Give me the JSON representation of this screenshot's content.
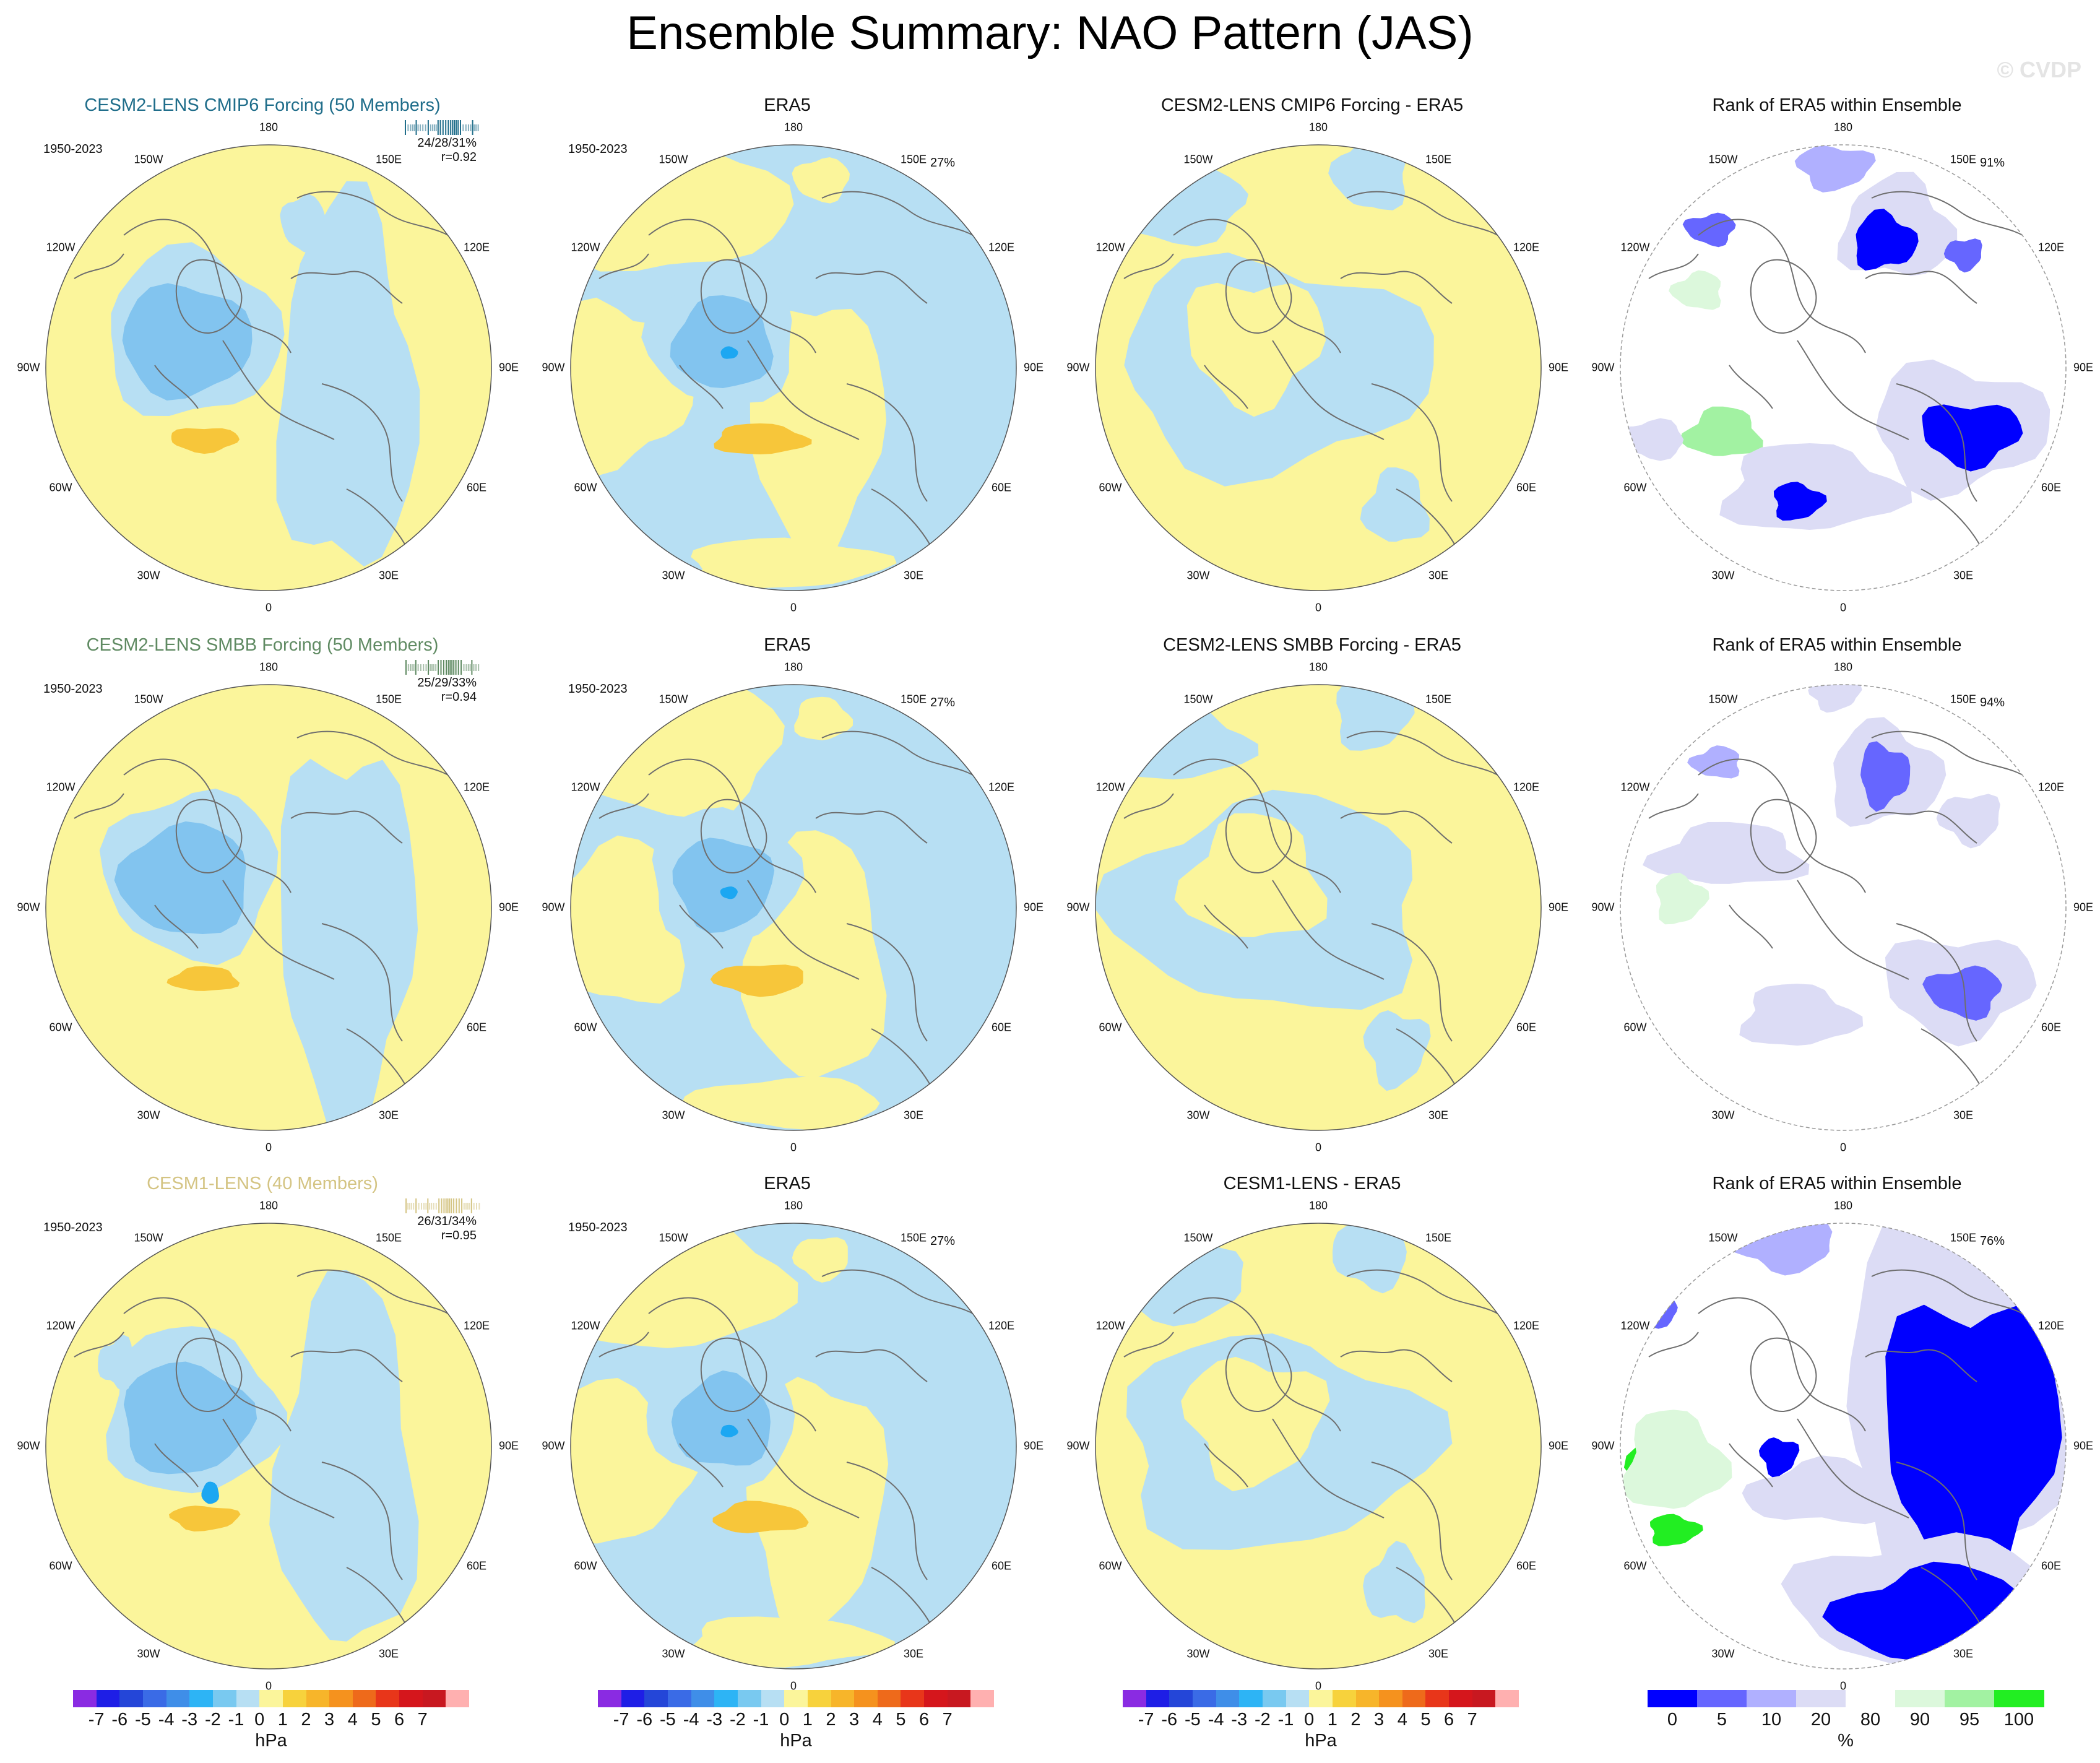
{
  "title": "Ensemble Summary: NAO Pattern (JAS)",
  "watermark": "© CVDP",
  "colors": {
    "yellow": "#fbf59b",
    "lightblue": "#b7dff3",
    "midblue": "#82c4ef",
    "deepblue": "#4ea6e8",
    "core": "#1ca7f2",
    "orange": "#f7c63a",
    "coast": "#6e6e6e"
  },
  "rows": [
    {
      "model_title": "CESM2-LENS CMIP6 Forcing (50 Members)",
      "model_color": "#1f6d8a",
      "period": "1950-2023",
      "stats": "24/28/31%",
      "r": "r=0.92",
      "era_title": "ERA5",
      "era_period": "1950-2023",
      "era_pct": "27%",
      "diff_title": "CESM2-LENS CMIP6 Forcing - ERA5",
      "rank_title": "Rank of ERA5 within Ensemble",
      "rank_pct": "91%"
    },
    {
      "model_title": "CESM2-LENS SMBB Forcing (50 Members)",
      "model_color": "#5f8a62",
      "period": "1950-2023",
      "stats": "25/29/33%",
      "r": "r=0.94",
      "era_title": "ERA5",
      "era_period": "1950-2023",
      "era_pct": "27%",
      "diff_title": "CESM2-LENS SMBB Forcing - ERA5",
      "rank_title": "Rank of ERA5 within Ensemble",
      "rank_pct": "94%"
    },
    {
      "model_title": "CESM1-LENS (40 Members)",
      "model_color": "#d4c483",
      "period": "1950-2023",
      "stats": "26/31/34%",
      "r": "r=0.95",
      "era_title": "ERA5",
      "era_period": "1950-2023",
      "era_pct": "27%",
      "diff_title": "CESM1-LENS - ERA5",
      "rank_title": "Rank of ERA5 within Ensemble",
      "rank_pct": "76%"
    }
  ],
  "lon_labels": [
    "180",
    "150E",
    "120E",
    "90E",
    "60E",
    "30E",
    "0",
    "30W",
    "60W",
    "90W",
    "120W",
    "150W"
  ],
  "chart_data": {
    "type": "heatmap",
    "projection": "north polar stereographic",
    "variable": "NAO sea level pressure pattern (JAS)",
    "hpa_colorbar": {
      "ticks": [
        "-7",
        "-6",
        "-5",
        "-4",
        "-3",
        "-2",
        "-1",
        "0",
        "1",
        "2",
        "3",
        "4",
        "5",
        "6",
        "7"
      ],
      "unit": "hPa",
      "colors": [
        "#8a2be2",
        "#1e1ee6",
        "#2446d8",
        "#3a6be6",
        "#3f8ee8",
        "#2db4f5",
        "#79c9f0",
        "#b7dff3",
        "#fbf59b",
        "#f7d23c",
        "#f7b52a",
        "#f5921e",
        "#ee6a1b",
        "#e8361a",
        "#d5161c",
        "#c81820",
        "#ffb0b0"
      ]
    },
    "rank_colorbar": {
      "ticks": [
        "0",
        "5",
        "10",
        "20",
        "80",
        "90",
        "95",
        "100"
      ],
      "unit": "%",
      "colors": [
        "#0000ff",
        "#6666ff",
        "#b0b0ff",
        "#dcdcf5",
        "#ffffff",
        "#dcf8dc",
        "#a2f2a2",
        "#22ee22"
      ]
    }
  }
}
